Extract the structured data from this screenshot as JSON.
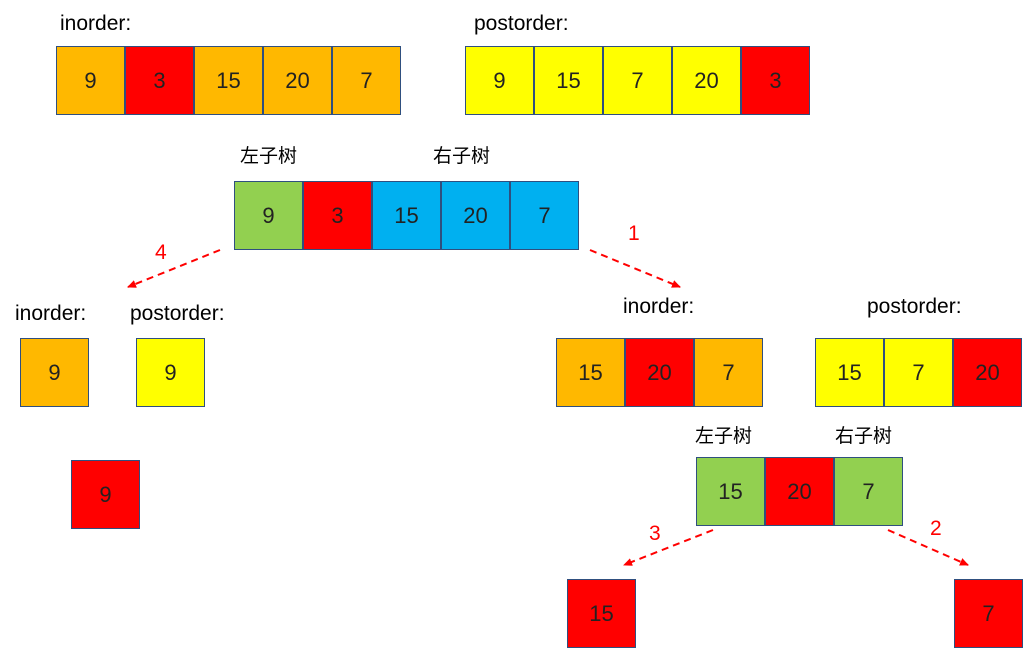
{
  "colors": {
    "orange": "#ffb800",
    "red": "#ff0000",
    "yellow": "#ffff00",
    "green": "#92d050",
    "blue": "#00b0f0",
    "arrow": "#ff0000"
  },
  "top": {
    "inorder_label": "inorder:",
    "inorder": [
      {
        "v": "9",
        "c": "orange"
      },
      {
        "v": "3",
        "c": "red"
      },
      {
        "v": "15",
        "c": "orange"
      },
      {
        "v": "20",
        "c": "orange"
      },
      {
        "v": "7",
        "c": "orange"
      }
    ],
    "postorder_label": "postorder:",
    "postorder": [
      {
        "v": "9",
        "c": "yellow"
      },
      {
        "v": "15",
        "c": "yellow"
      },
      {
        "v": "7",
        "c": "yellow"
      },
      {
        "v": "20",
        "c": "yellow"
      },
      {
        "v": "3",
        "c": "red"
      }
    ]
  },
  "split": {
    "left_label": "左子树",
    "right_label": "右子树",
    "cells": [
      {
        "v": "9",
        "c": "green"
      },
      {
        "v": "3",
        "c": "red"
      },
      {
        "v": "15",
        "c": "blue"
      },
      {
        "v": "20",
        "c": "blue"
      },
      {
        "v": "7",
        "c": "blue"
      }
    ]
  },
  "steps": {
    "s1": "1",
    "s2": "2",
    "s3": "3",
    "s4": "4"
  },
  "left_branch": {
    "inorder_label": "inorder:",
    "inorder": [
      {
        "v": "9",
        "c": "orange"
      }
    ],
    "postorder_label": "postorder:",
    "postorder": [
      {
        "v": "9",
        "c": "yellow"
      }
    ],
    "node": {
      "v": "9",
      "c": "red"
    }
  },
  "right_branch": {
    "inorder_label": "inorder:",
    "inorder": [
      {
        "v": "15",
        "c": "orange"
      },
      {
        "v": "20",
        "c": "red"
      },
      {
        "v": "7",
        "c": "orange"
      }
    ],
    "postorder_label": "postorder:",
    "postorder": [
      {
        "v": "15",
        "c": "yellow"
      },
      {
        "v": "7",
        "c": "yellow"
      },
      {
        "v": "20",
        "c": "red"
      }
    ],
    "left_label": "左子树",
    "right_label": "右子树",
    "split": [
      {
        "v": "15",
        "c": "green"
      },
      {
        "v": "20",
        "c": "red"
      },
      {
        "v": "7",
        "c": "green"
      }
    ],
    "left_node": {
      "v": "15",
      "c": "red"
    },
    "right_node": {
      "v": "7",
      "c": "red"
    }
  }
}
